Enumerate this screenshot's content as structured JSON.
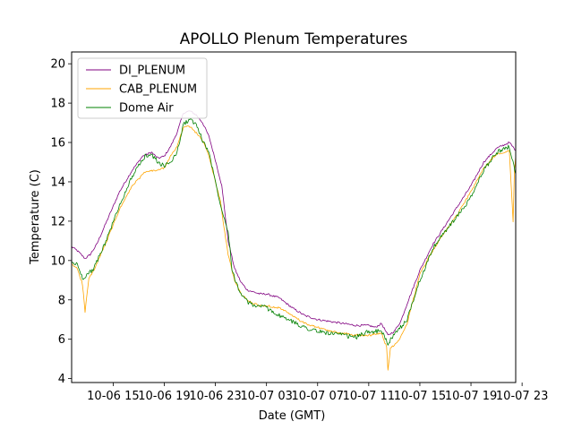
{
  "chart_data": {
    "type": "line",
    "title": "APOLLO Plenum Temperatures",
    "xlabel": "Date (GMT)",
    "ylabel": "Temperature (C)",
    "xlim_hours": [
      -3.25,
      31.5
    ],
    "ylim": [
      3.8,
      20.6
    ],
    "x_ticks": [
      {
        "hour": 0,
        "label": "10-06 15"
      },
      {
        "hour": 4,
        "label": "10-06 19"
      },
      {
        "hour": 8,
        "label": "10-06 23"
      },
      {
        "hour": 12,
        "label": "10-07 03"
      },
      {
        "hour": 16,
        "label": "10-07 07"
      },
      {
        "hour": 20,
        "label": "10-07 11"
      },
      {
        "hour": 24,
        "label": "10-07 15"
      },
      {
        "hour": 28,
        "label": "10-07 19"
      },
      {
        "hour": 32,
        "label": "10-07 23"
      }
    ],
    "y_ticks": [
      4,
      6,
      8,
      10,
      12,
      14,
      16,
      18,
      20
    ],
    "legend_position": "upper-left",
    "series": [
      {
        "name": "DI_PLENUM",
        "color": "#800080",
        "x": [
          -3.25,
          -2.8,
          -2.2,
          -1.8,
          -1.3,
          -0.5,
          0.5,
          1.5,
          2.3,
          3.0,
          3.5,
          4.0,
          4.5,
          5.0,
          5.5,
          6.0,
          6.5,
          7.0,
          7.5,
          8.0,
          8.5,
          9.0,
          9.5,
          10.0,
          10.5,
          11.0,
          11.5,
          12.0,
          13.0,
          14.0,
          15.0,
          16.0,
          17.0,
          18.0,
          19.0,
          20.0,
          20.5,
          21.0,
          21.5,
          22.0,
          22.5,
          23.0,
          24.0,
          25.0,
          26.0,
          27.0,
          28.0,
          29.0,
          30.0,
          31.0,
          31.5
        ],
        "values": [
          10.7,
          10.5,
          10.1,
          10.3,
          10.8,
          12.0,
          13.5,
          14.6,
          15.3,
          15.5,
          15.2,
          15.3,
          15.8,
          16.5,
          17.5,
          17.6,
          17.4,
          17.0,
          16.3,
          15.1,
          13.8,
          11.0,
          9.6,
          8.9,
          8.5,
          8.4,
          8.3,
          8.3,
          8.1,
          7.6,
          7.2,
          7.0,
          6.9,
          6.8,
          6.7,
          6.7,
          6.6,
          6.8,
          6.2,
          6.4,
          6.9,
          7.8,
          9.5,
          10.8,
          11.8,
          12.8,
          13.8,
          15.0,
          15.7,
          16.0,
          15.6
        ]
      },
      {
        "name": "CAB_PLENUM",
        "color": "#ffa500",
        "x": [
          -3.25,
          -2.8,
          -2.4,
          -2.2,
          -1.9,
          -1.5,
          -0.5,
          0.5,
          1.5,
          2.5,
          3.5,
          4.0,
          4.5,
          5.0,
          5.5,
          6.0,
          6.5,
          7.0,
          7.5,
          8.0,
          8.4,
          8.6,
          9.0,
          9.5,
          10.0,
          10.5,
          11.0,
          11.5,
          12.0,
          13.0,
          14.0,
          15.0,
          16.0,
          17.0,
          18.0,
          19.0,
          20.0,
          21.0,
          21.4,
          21.5,
          21.7,
          22.0,
          22.5,
          23.0,
          24.0,
          25.0,
          26.0,
          27.0,
          28.0,
          29.0,
          30.0,
          31.0,
          31.3,
          31.4,
          31.5
        ],
        "values": [
          9.8,
          9.6,
          8.8,
          7.4,
          9.1,
          9.5,
          11.0,
          12.6,
          13.8,
          14.5,
          14.6,
          14.7,
          15.3,
          15.8,
          16.8,
          16.8,
          16.5,
          16.1,
          15.3,
          14.0,
          13.0,
          12.0,
          10.3,
          9.0,
          8.3,
          8.0,
          7.8,
          7.7,
          7.7,
          7.6,
          7.2,
          6.8,
          6.6,
          6.4,
          6.3,
          6.2,
          6.2,
          6.3,
          5.6,
          4.4,
          5.6,
          5.7,
          6.1,
          6.8,
          9.3,
          10.5,
          11.5,
          12.4,
          13.5,
          14.7,
          15.4,
          15.6,
          12.0,
          14.6,
          15.3
        ]
      },
      {
        "name": "Dome Air",
        "color": "#008000",
        "x": [
          -3.25,
          -2.8,
          -2.4,
          -2.0,
          -1.5,
          -0.5,
          0.5,
          1.5,
          2.5,
          3.0,
          3.5,
          4.0,
          4.5,
          5.0,
          5.5,
          6.0,
          6.5,
          7.0,
          7.5,
          8.0,
          8.5,
          9.0,
          9.3,
          9.6,
          10.0,
          10.5,
          11.0,
          11.5,
          12.0,
          12.5,
          13.0,
          14.0,
          15.0,
          16.0,
          17.0,
          18.0,
          19.0,
          20.0,
          21.0,
          21.5,
          22.0,
          23.0,
          24.0,
          25.0,
          26.0,
          27.0,
          28.0,
          29.0,
          30.0,
          31.0,
          31.5
        ],
        "values": [
          9.9,
          9.8,
          9.1,
          9.3,
          9.6,
          11.1,
          12.8,
          14.3,
          15.3,
          15.4,
          15.0,
          14.8,
          15.0,
          15.5,
          16.9,
          17.2,
          16.9,
          16.1,
          15.5,
          14.0,
          12.6,
          11.5,
          9.6,
          8.9,
          8.3,
          7.9,
          7.7,
          7.7,
          7.6,
          7.4,
          7.2,
          6.9,
          6.6,
          6.4,
          6.3,
          6.2,
          6.1,
          6.4,
          6.4,
          5.8,
          6.2,
          7.0,
          9.0,
          10.6,
          11.5,
          12.3,
          13.2,
          14.6,
          15.5,
          15.8,
          14.4
        ]
      }
    ]
  }
}
